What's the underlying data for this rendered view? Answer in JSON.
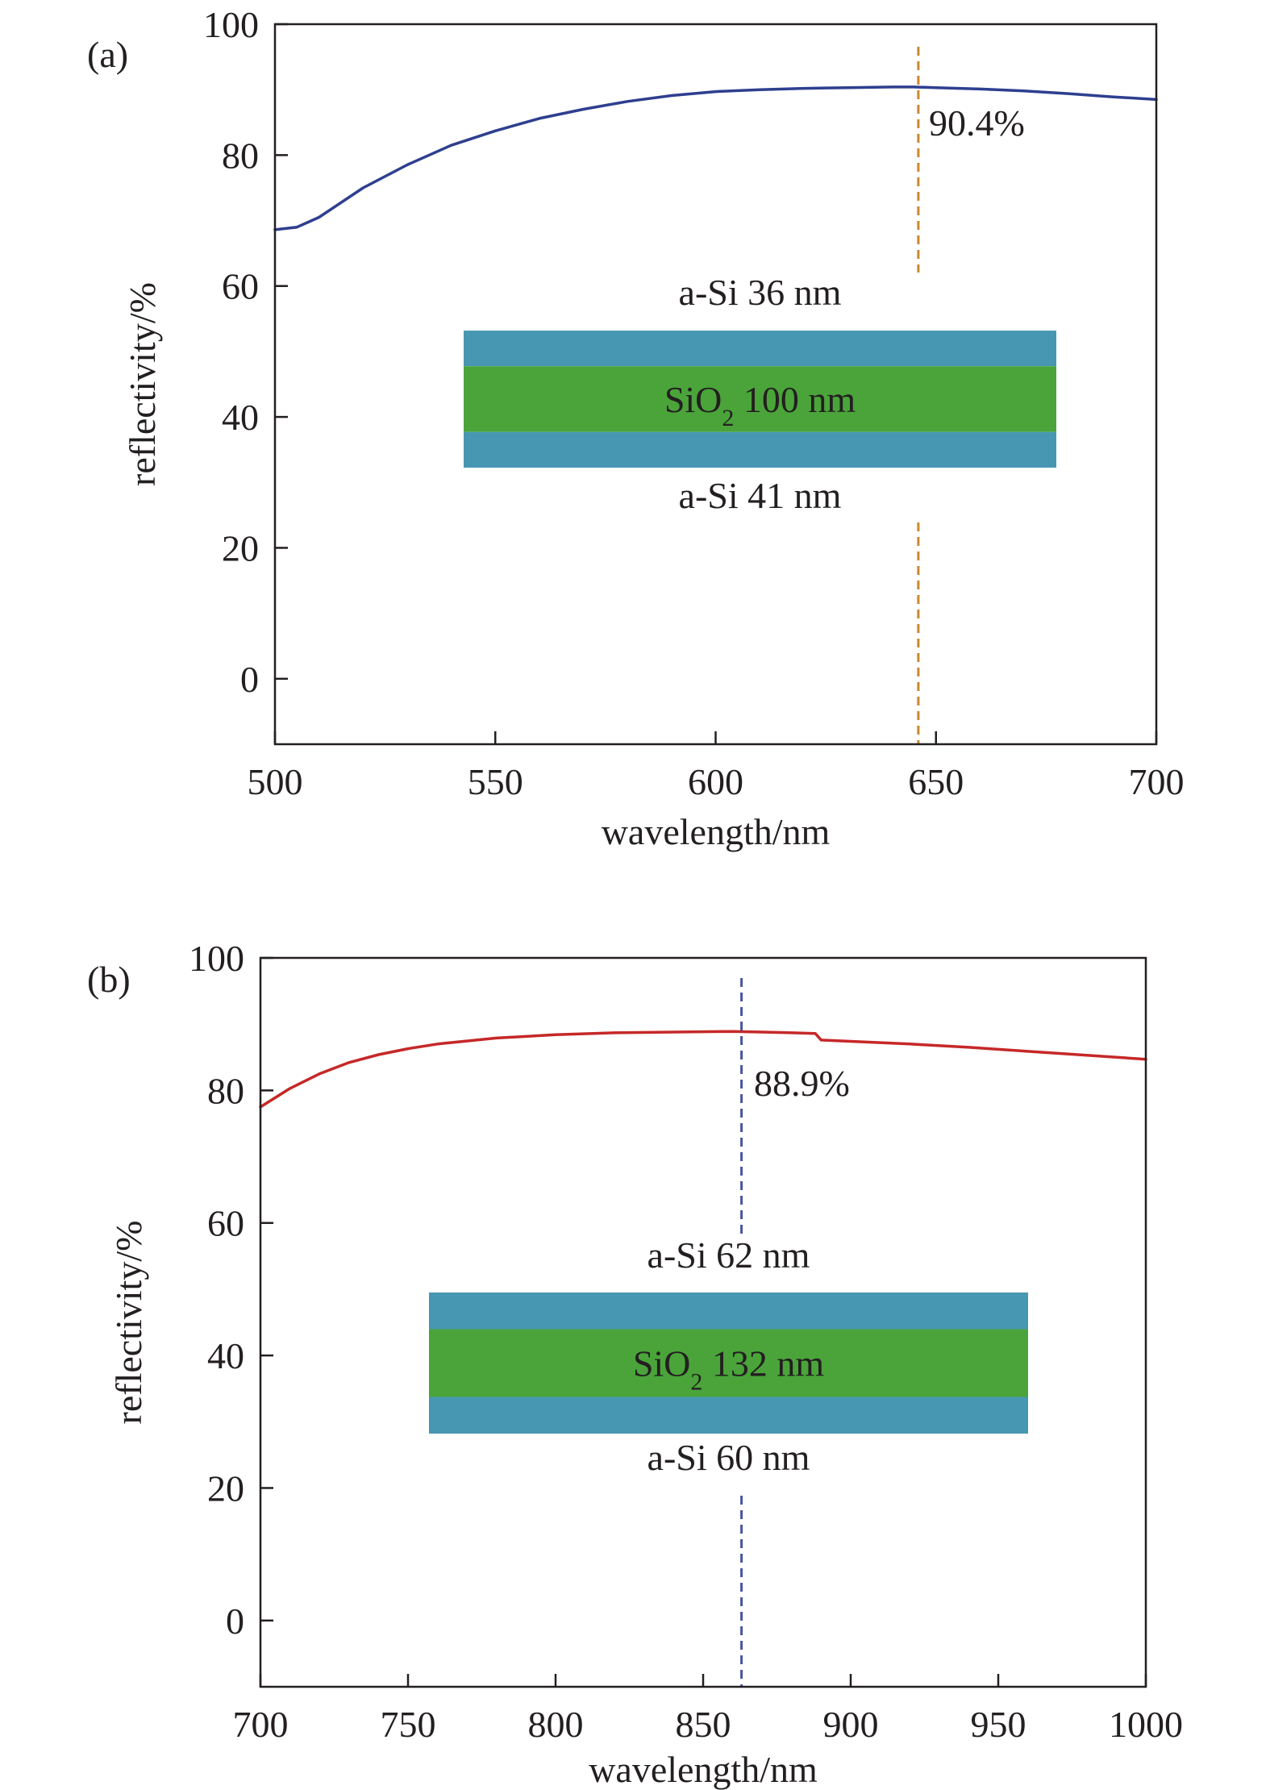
{
  "chart_data": [
    {
      "type": "line",
      "panel_label": "(a)",
      "xlabel": "wavelength/nm",
      "ylabel": "reflectivity/%",
      "xlim": [
        500,
        700
      ],
      "ylim": [
        -10,
        100
      ],
      "xticks": [
        500,
        550,
        600,
        650,
        700
      ],
      "yticks": [
        0,
        20,
        40,
        60,
        80,
        100
      ],
      "grid": false,
      "series": [
        {
          "color": "#2e3f8f",
          "x": [
            500,
            505,
            510,
            520,
            530,
            540,
            550,
            560,
            570,
            580,
            590,
            600,
            610,
            620,
            630,
            640,
            645,
            650,
            660,
            670,
            680,
            690,
            700
          ],
          "y": [
            68.6,
            69.0,
            70.5,
            75.0,
            78.5,
            81.5,
            83.7,
            85.6,
            87.0,
            88.2,
            89.1,
            89.7,
            90.0,
            90.2,
            90.3,
            90.4,
            90.4,
            90.3,
            90.1,
            89.8,
            89.4,
            88.9,
            88.5
          ]
        }
      ],
      "marker_line": {
        "x": 646,
        "color": "#c8892f",
        "style": "dashed"
      },
      "annotation": "90.4%",
      "layers": {
        "top_label": "a-Si 36 nm",
        "middle_main": "SiO",
        "middle_sub": "2",
        "middle_rest": " 100 nm",
        "bottom_label": "a-Si 41 nm",
        "outer_color": "#4797b3",
        "middle_color": "#4aa43a"
      }
    },
    {
      "type": "line",
      "panel_label": "(b)",
      "xlabel": "wavelength/nm",
      "ylabel": "reflectivity/%",
      "xlim": [
        700,
        1000
      ],
      "ylim": [
        -10,
        100
      ],
      "xticks": [
        700,
        750,
        800,
        850,
        900,
        950,
        1000
      ],
      "yticks": [
        0,
        20,
        40,
        60,
        80,
        100
      ],
      "grid": false,
      "series": [
        {
          "color": "#c62828",
          "x": [
            700,
            710,
            720,
            730,
            740,
            750,
            760,
            780,
            800,
            820,
            840,
            860,
            870,
            880,
            888,
            890,
            900,
            920,
            940,
            960,
            980,
            1000
          ],
          "y": [
            77.5,
            80.3,
            82.5,
            84.2,
            85.4,
            86.3,
            87.0,
            87.9,
            88.4,
            88.7,
            88.8,
            88.9,
            88.8,
            88.7,
            88.6,
            87.6,
            87.4,
            87.0,
            86.5,
            85.9,
            85.3,
            84.7
          ]
        }
      ],
      "marker_line": {
        "x": 863,
        "color": "#4a55a2",
        "style": "dashed"
      },
      "annotation": "88.9%",
      "layers": {
        "top_label": "a-Si 62 nm",
        "middle_main": "SiO",
        "middle_sub": "2",
        "middle_rest": " 132 nm",
        "bottom_label": "a-Si 60 nm",
        "outer_color": "#4797b3",
        "middle_color": "#4aa43a"
      }
    }
  ]
}
